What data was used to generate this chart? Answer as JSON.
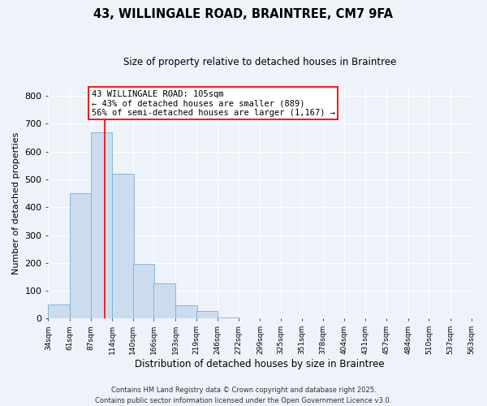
{
  "title": "43, WILLINGALE ROAD, BRAINTREE, CM7 9FA",
  "subtitle": "Size of property relative to detached houses in Braintree",
  "xlabel": "Distribution of detached houses by size in Braintree",
  "ylabel": "Number of detached properties",
  "bin_edges": [
    34,
    61,
    87,
    114,
    140,
    166,
    193,
    219,
    246,
    272,
    299,
    325,
    351,
    378,
    404,
    431,
    457,
    484,
    510,
    537,
    563
  ],
  "bar_heights": [
    50,
    450,
    670,
    520,
    197,
    128,
    48,
    28,
    5,
    0,
    0,
    0,
    0,
    0,
    0,
    0,
    0,
    0,
    0,
    0
  ],
  "bar_color": "#ccdcef",
  "bar_edge_color": "#7aafd4",
  "vline_x": 105,
  "vline_color": "red",
  "ylim": [
    0,
    830
  ],
  "yticks": [
    0,
    100,
    200,
    300,
    400,
    500,
    600,
    700,
    800
  ],
  "annotation_title": "43 WILLINGALE ROAD: 105sqm",
  "annotation_line1": "← 43% of detached houses are smaller (889)",
  "annotation_line2": "56% of semi-detached houses are larger (1,167) →",
  "annotation_box_color": "white",
  "annotation_box_edge": "red",
  "footer1": "Contains HM Land Registry data © Crown copyright and database right 2025.",
  "footer2": "Contains public sector information licensed under the Open Government Licence v3.0.",
  "background_color": "#eef2f9",
  "tick_labels": [
    "34sqm",
    "61sqm",
    "87sqm",
    "114sqm",
    "140sqm",
    "166sqm",
    "193sqm",
    "219sqm",
    "246sqm",
    "272sqm",
    "299sqm",
    "325sqm",
    "351sqm",
    "378sqm",
    "404sqm",
    "431sqm",
    "457sqm",
    "484sqm",
    "510sqm",
    "537sqm",
    "563sqm"
  ],
  "title_fontsize": 10.5,
  "subtitle_fontsize": 8.5,
  "ylabel_fontsize": 8,
  "xlabel_fontsize": 8.5,
  "ytick_fontsize": 8,
  "xtick_fontsize": 6.5,
  "footer_fontsize": 6,
  "ann_fontsize": 7.5
}
